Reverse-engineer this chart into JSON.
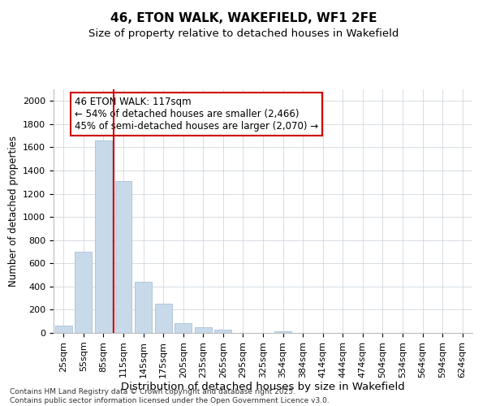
{
  "title": "46, ETON WALK, WAKEFIELD, WF1 2FE",
  "subtitle": "Size of property relative to detached houses in Wakefield",
  "xlabel": "Distribution of detached houses by size in Wakefield",
  "ylabel": "Number of detached properties",
  "categories": [
    "25sqm",
    "55sqm",
    "85sqm",
    "115sqm",
    "145sqm",
    "175sqm",
    "205sqm",
    "235sqm",
    "265sqm",
    "295sqm",
    "325sqm",
    "354sqm",
    "384sqm",
    "414sqm",
    "444sqm",
    "474sqm",
    "504sqm",
    "534sqm",
    "564sqm",
    "594sqm",
    "624sqm"
  ],
  "values": [
    60,
    700,
    1660,
    1310,
    440,
    255,
    85,
    50,
    25,
    0,
    0,
    15,
    0,
    0,
    0,
    0,
    0,
    0,
    0,
    0,
    0
  ],
  "bar_color": "#c8d9ea",
  "bar_edge_color": "#a8c0d6",
  "vline_color": "#cc0000",
  "vline_index": 2.5,
  "annotation_text_line1": "46 ETON WALK: 117sqm",
  "annotation_text_line2": "← 54% of detached houses are smaller (2,466)",
  "annotation_text_line3": "45% of semi-detached houses are larger (2,070) →",
  "title_fontsize": 11,
  "subtitle_fontsize": 9.5,
  "xlabel_fontsize": 9.5,
  "ylabel_fontsize": 8.5,
  "tick_fontsize": 8,
  "annotation_fontsize": 8.5,
  "footer_line1": "Contains HM Land Registry data © Crown copyright and database right 2025.",
  "footer_line2": "Contains public sector information licensed under the Open Government Licence v3.0.",
  "ylim": [
    0,
    2100
  ],
  "yticks": [
    0,
    200,
    400,
    600,
    800,
    1000,
    1200,
    1400,
    1600,
    1800,
    2000
  ],
  "background_color": "#ffffff",
  "grid_color": "#c8d0d8"
}
